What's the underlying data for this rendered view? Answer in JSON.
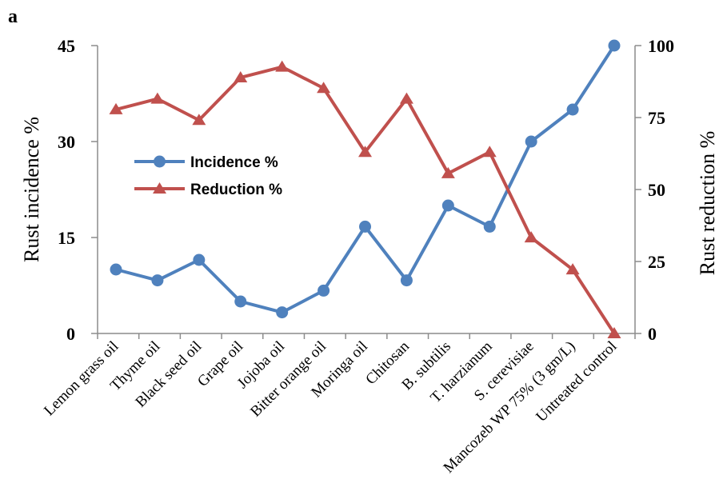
{
  "panel_label": "a",
  "chart_data": {
    "type": "line",
    "categories": [
      "Lemon grass oil",
      "Thyme oil",
      "Black seed oil",
      "Grape oil",
      "Jojoba oil",
      "Bitter orange oil",
      "Moringa oil",
      "Chitosan",
      "B. subtilis",
      "T. harzianum",
      "S. cerevisiae",
      "Mancozeb WP 75% (3 gm/L)",
      "Untreated control"
    ],
    "series": [
      {
        "name": "Incidence %",
        "axis": "left",
        "color": "#4f81bd",
        "marker": "circle",
        "values": [
          10,
          8.3,
          11.5,
          5,
          3.3,
          6.7,
          16.7,
          8.3,
          20,
          16.7,
          30,
          35,
          45
        ]
      },
      {
        "name": "Reduction %",
        "axis": "right",
        "color": "#c0504d",
        "marker": "triangle",
        "values": [
          77.8,
          81.5,
          74.1,
          88.9,
          92.6,
          85.2,
          63,
          81.5,
          55.6,
          63,
          33.3,
          22.2,
          0
        ]
      }
    ],
    "ylabel": "Rust incidence %",
    "y2label": "Rust reduction %",
    "ylim": [
      0,
      45
    ],
    "y2lim": [
      0,
      100
    ],
    "yticks": [
      "0",
      "15",
      "30",
      "45"
    ],
    "y2ticks": [
      "0",
      "25",
      "50",
      "75",
      "100"
    ],
    "grid": false,
    "legend_position": "left"
  }
}
